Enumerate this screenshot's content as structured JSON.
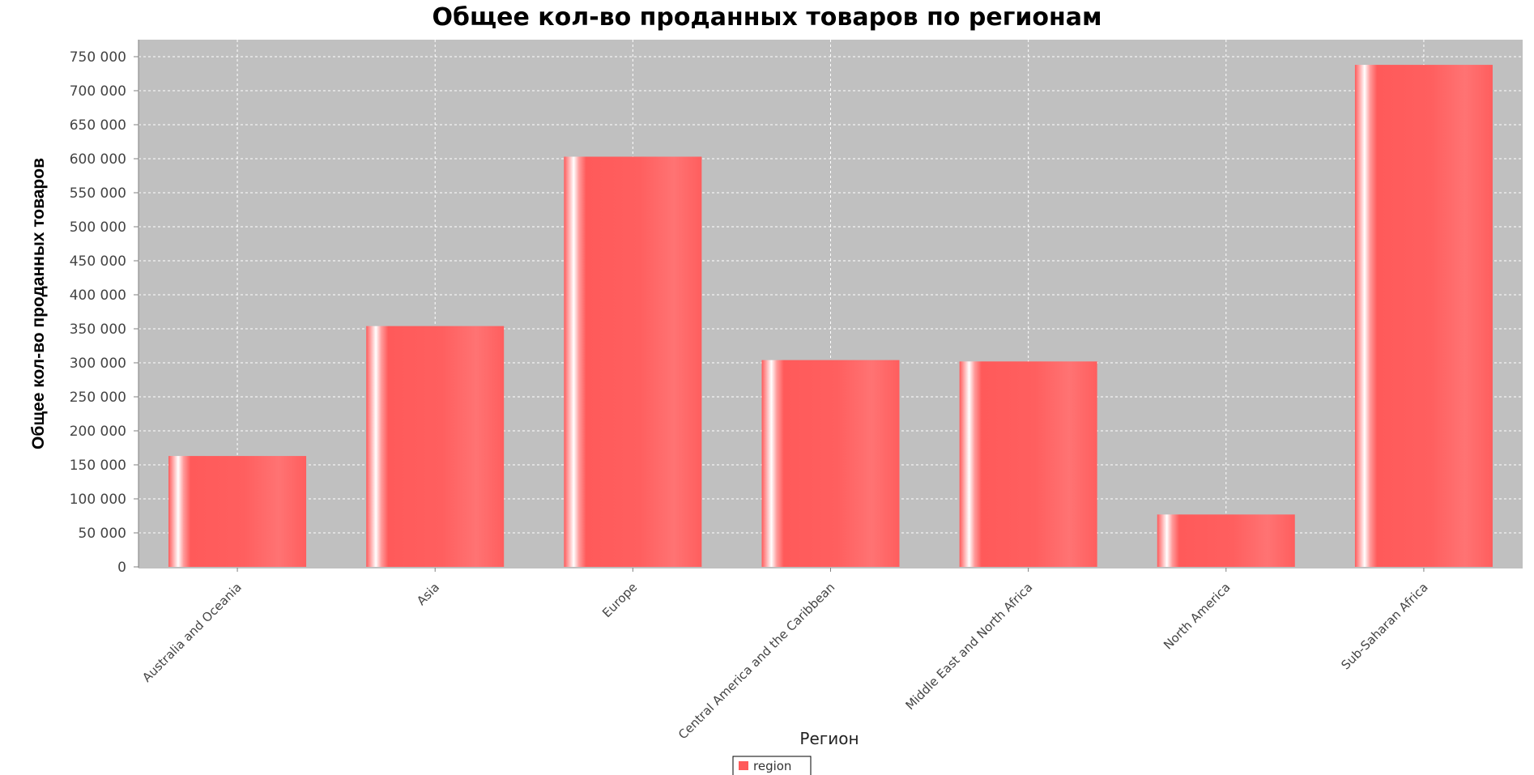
{
  "colors": {
    "bar": "#ff5a5a",
    "plot_background": "#c0c0c0",
    "gridline": "#ffffff",
    "axis": "#808080"
  },
  "chart_data": {
    "type": "bar",
    "title": "Общее кол-во проданных товаров по регионам",
    "xlabel": "Регион",
    "ylabel": "Общее кол-во проданных товаров",
    "categories": [
      "Australia and Oceania",
      "Asia",
      "Europe",
      "Central America and the Caribbean",
      "Middle East and North Africa",
      "North America",
      "Sub-Saharan Africa"
    ],
    "series": [
      {
        "name": "region",
        "values": [
          163000,
          354000,
          603000,
          304000,
          302000,
          77000,
          738000
        ]
      }
    ],
    "ylim": [
      0,
      775000
    ],
    "yticks": [
      0,
      50000,
      100000,
      150000,
      200000,
      250000,
      300000,
      350000,
      400000,
      450000,
      500000,
      550000,
      600000,
      650000,
      700000,
      750000
    ],
    "ytick_labels": [
      "0",
      "50 000",
      "100 000",
      "150 000",
      "200 000",
      "250 000",
      "300 000",
      "350 000",
      "400 000",
      "450 000",
      "500 000",
      "550 000",
      "600 000",
      "650 000",
      "700 000",
      "750 000"
    ],
    "grid": true,
    "legend_position": "bottom-center"
  }
}
